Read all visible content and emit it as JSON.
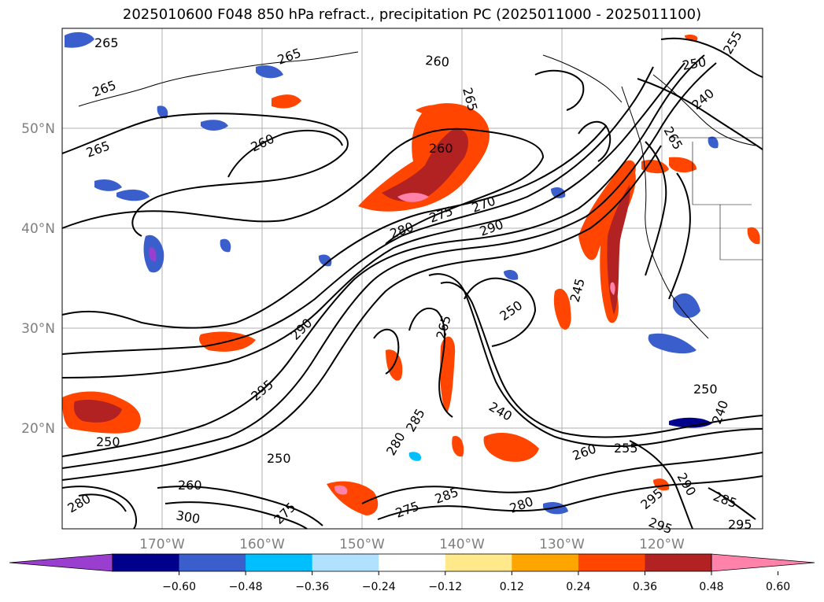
{
  "title": "2025010600 F048 850 hPa refract., precipitation PC (2025011000 - 2025011100)",
  "map": {
    "lat_labels": [
      "50°N",
      "40°N",
      "30°N",
      "20°N"
    ],
    "lon_labels": [
      "170°W",
      "160°W",
      "150°W",
      "140°W",
      "130°W",
      "120°W"
    ],
    "contour_labels": [
      "265",
      "265",
      "265",
      "265",
      "260",
      "260",
      "265",
      "260",
      "270",
      "275",
      "280",
      "290",
      "250",
      "240",
      "255",
      "265",
      "245",
      "250",
      "290",
      "265",
      "295",
      "250",
      "260",
      "240",
      "285",
      "280",
      "275",
      "285",
      "280",
      "295",
      "250",
      "240",
      "260",
      "255",
      "290",
      "295",
      "285",
      "295",
      "275",
      "250",
      "280",
      "300"
    ]
  },
  "colorbar": {
    "ticks": [
      "−0.60",
      "−0.48",
      "−0.36",
      "−0.24",
      "−0.12",
      "0.12",
      "0.24",
      "0.36",
      "0.48",
      "0.60"
    ],
    "colors": [
      "#9a3ecf",
      "#00008b",
      "#3a5fcd",
      "#00bfff",
      "#b0e2ff",
      "#ffffff",
      "#ffe98a",
      "#ffa500",
      "#ff4500",
      "#b22222",
      "#ff82ab"
    ]
  }
}
